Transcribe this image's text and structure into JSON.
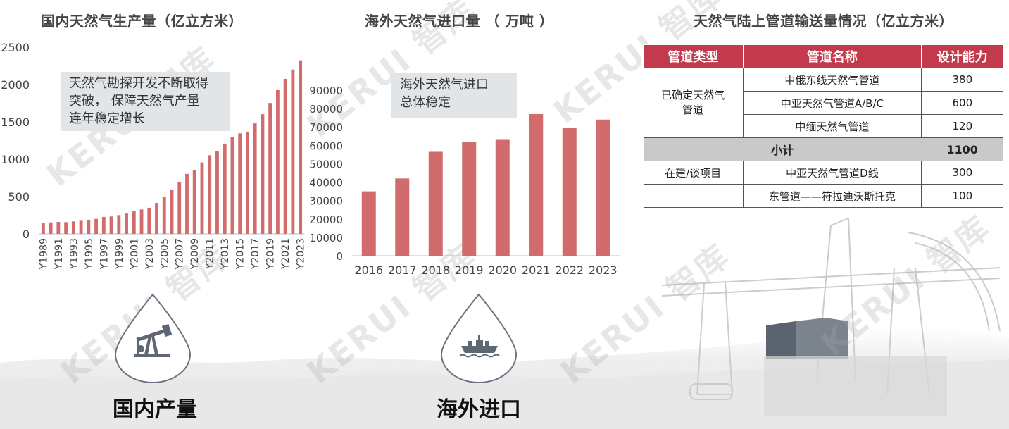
{
  "watermark": "KERUI 智库",
  "colors": {
    "bar": "#d26b6b",
    "header": "#c23a4b",
    "subtotal": "#c9c9c9"
  },
  "panels": {
    "domestic": {
      "callout_lines": [
        "天然气勘探开发不断取得",
        "突破， 保障天然气产量",
        "连年稳定增长"
      ],
      "icon": "oil-pump-icon",
      "label": "国内产量"
    },
    "import": {
      "callout_lines": [
        "海外天然气进口",
        "总体稳定"
      ],
      "icon": "oil-tanker-icon",
      "label": "海外进口"
    }
  },
  "chart_data": [
    {
      "type": "bar",
      "title": "国内天然气生产量（亿立方米）",
      "categories": [
        "Y1989",
        "Y1990",
        "Y1991",
        "Y1992",
        "Y1993",
        "Y1994",
        "Y1995",
        "Y1996",
        "Y1997",
        "Y1998",
        "Y1999",
        "Y2000",
        "Y2001",
        "Y2002",
        "Y2003",
        "Y2004",
        "Y2005",
        "Y2006",
        "Y2007",
        "Y2008",
        "Y2009",
        "Y2010",
        "Y2011",
        "Y2012",
        "Y2013",
        "Y2014",
        "Y2015",
        "Y2016",
        "Y2017",
        "Y2018",
        "Y2019",
        "Y2020",
        "Y2021",
        "Y2022",
        "Y2023"
      ],
      "tick_labels": [
        "Y1989",
        "Y1991",
        "Y1993",
        "Y1995",
        "Y1997",
        "Y1999",
        "Y2001",
        "Y2003",
        "Y2005",
        "Y2007",
        "Y2009",
        "Y2011",
        "Y2013",
        "Y2015",
        "Y2017",
        "Y2019",
        "Y2021",
        "Y2023"
      ],
      "values": [
        150,
        153,
        160,
        157,
        167,
        176,
        179,
        201,
        227,
        233,
        252,
        272,
        303,
        327,
        350,
        415,
        493,
        586,
        692,
        803,
        853,
        957,
        1053,
        1106,
        1209,
        1302,
        1346,
        1369,
        1480,
        1602,
        1753,
        1925,
        2076,
        2201,
        2324
      ],
      "ylim": [
        0,
        2500
      ],
      "yticks": [
        0,
        500,
        1000,
        1500,
        2000,
        2500
      ],
      "grid": false
    },
    {
      "type": "bar",
      "title": "海外天然气进口量 （ 万吨 ）",
      "categories": [
        "2016",
        "2017",
        "2018",
        "2019",
        "2020",
        "2021",
        "2022",
        "2023"
      ],
      "values": [
        35000,
        42000,
        56500,
        62000,
        63000,
        77000,
        69500,
        74000
      ],
      "ylim": [
        0,
        90000
      ],
      "yticks": [
        0,
        10000,
        20000,
        30000,
        40000,
        50000,
        60000,
        70000,
        80000,
        90000
      ],
      "grid": false
    },
    {
      "type": "table",
      "title": "天然气陆上管道输送量情况（亿立方米）",
      "headers": [
        "管道类型",
        "管道名称",
        "设计能力"
      ],
      "groups": {
        "confirmed": "已确定天然气管道",
        "confirmed_line1": "已确定天然气",
        "confirmed_line2": "管道",
        "building": "在建/谈项目"
      },
      "rows": [
        [
          "已确定天然气管道",
          "中俄东线天然气管道",
          "380"
        ],
        [
          "已确定天然气管道",
          "中亚天然气管道A/B/C",
          "600"
        ],
        [
          "已确定天然气管道",
          "中缅天然气管道",
          "120"
        ],
        [
          "小计",
          "",
          "1100"
        ],
        [
          "在建/谈项目",
          "中亚天然气管道D线",
          "300"
        ],
        [
          "",
          "东管道——符拉迪沃斯托克",
          "100"
        ]
      ]
    }
  ]
}
